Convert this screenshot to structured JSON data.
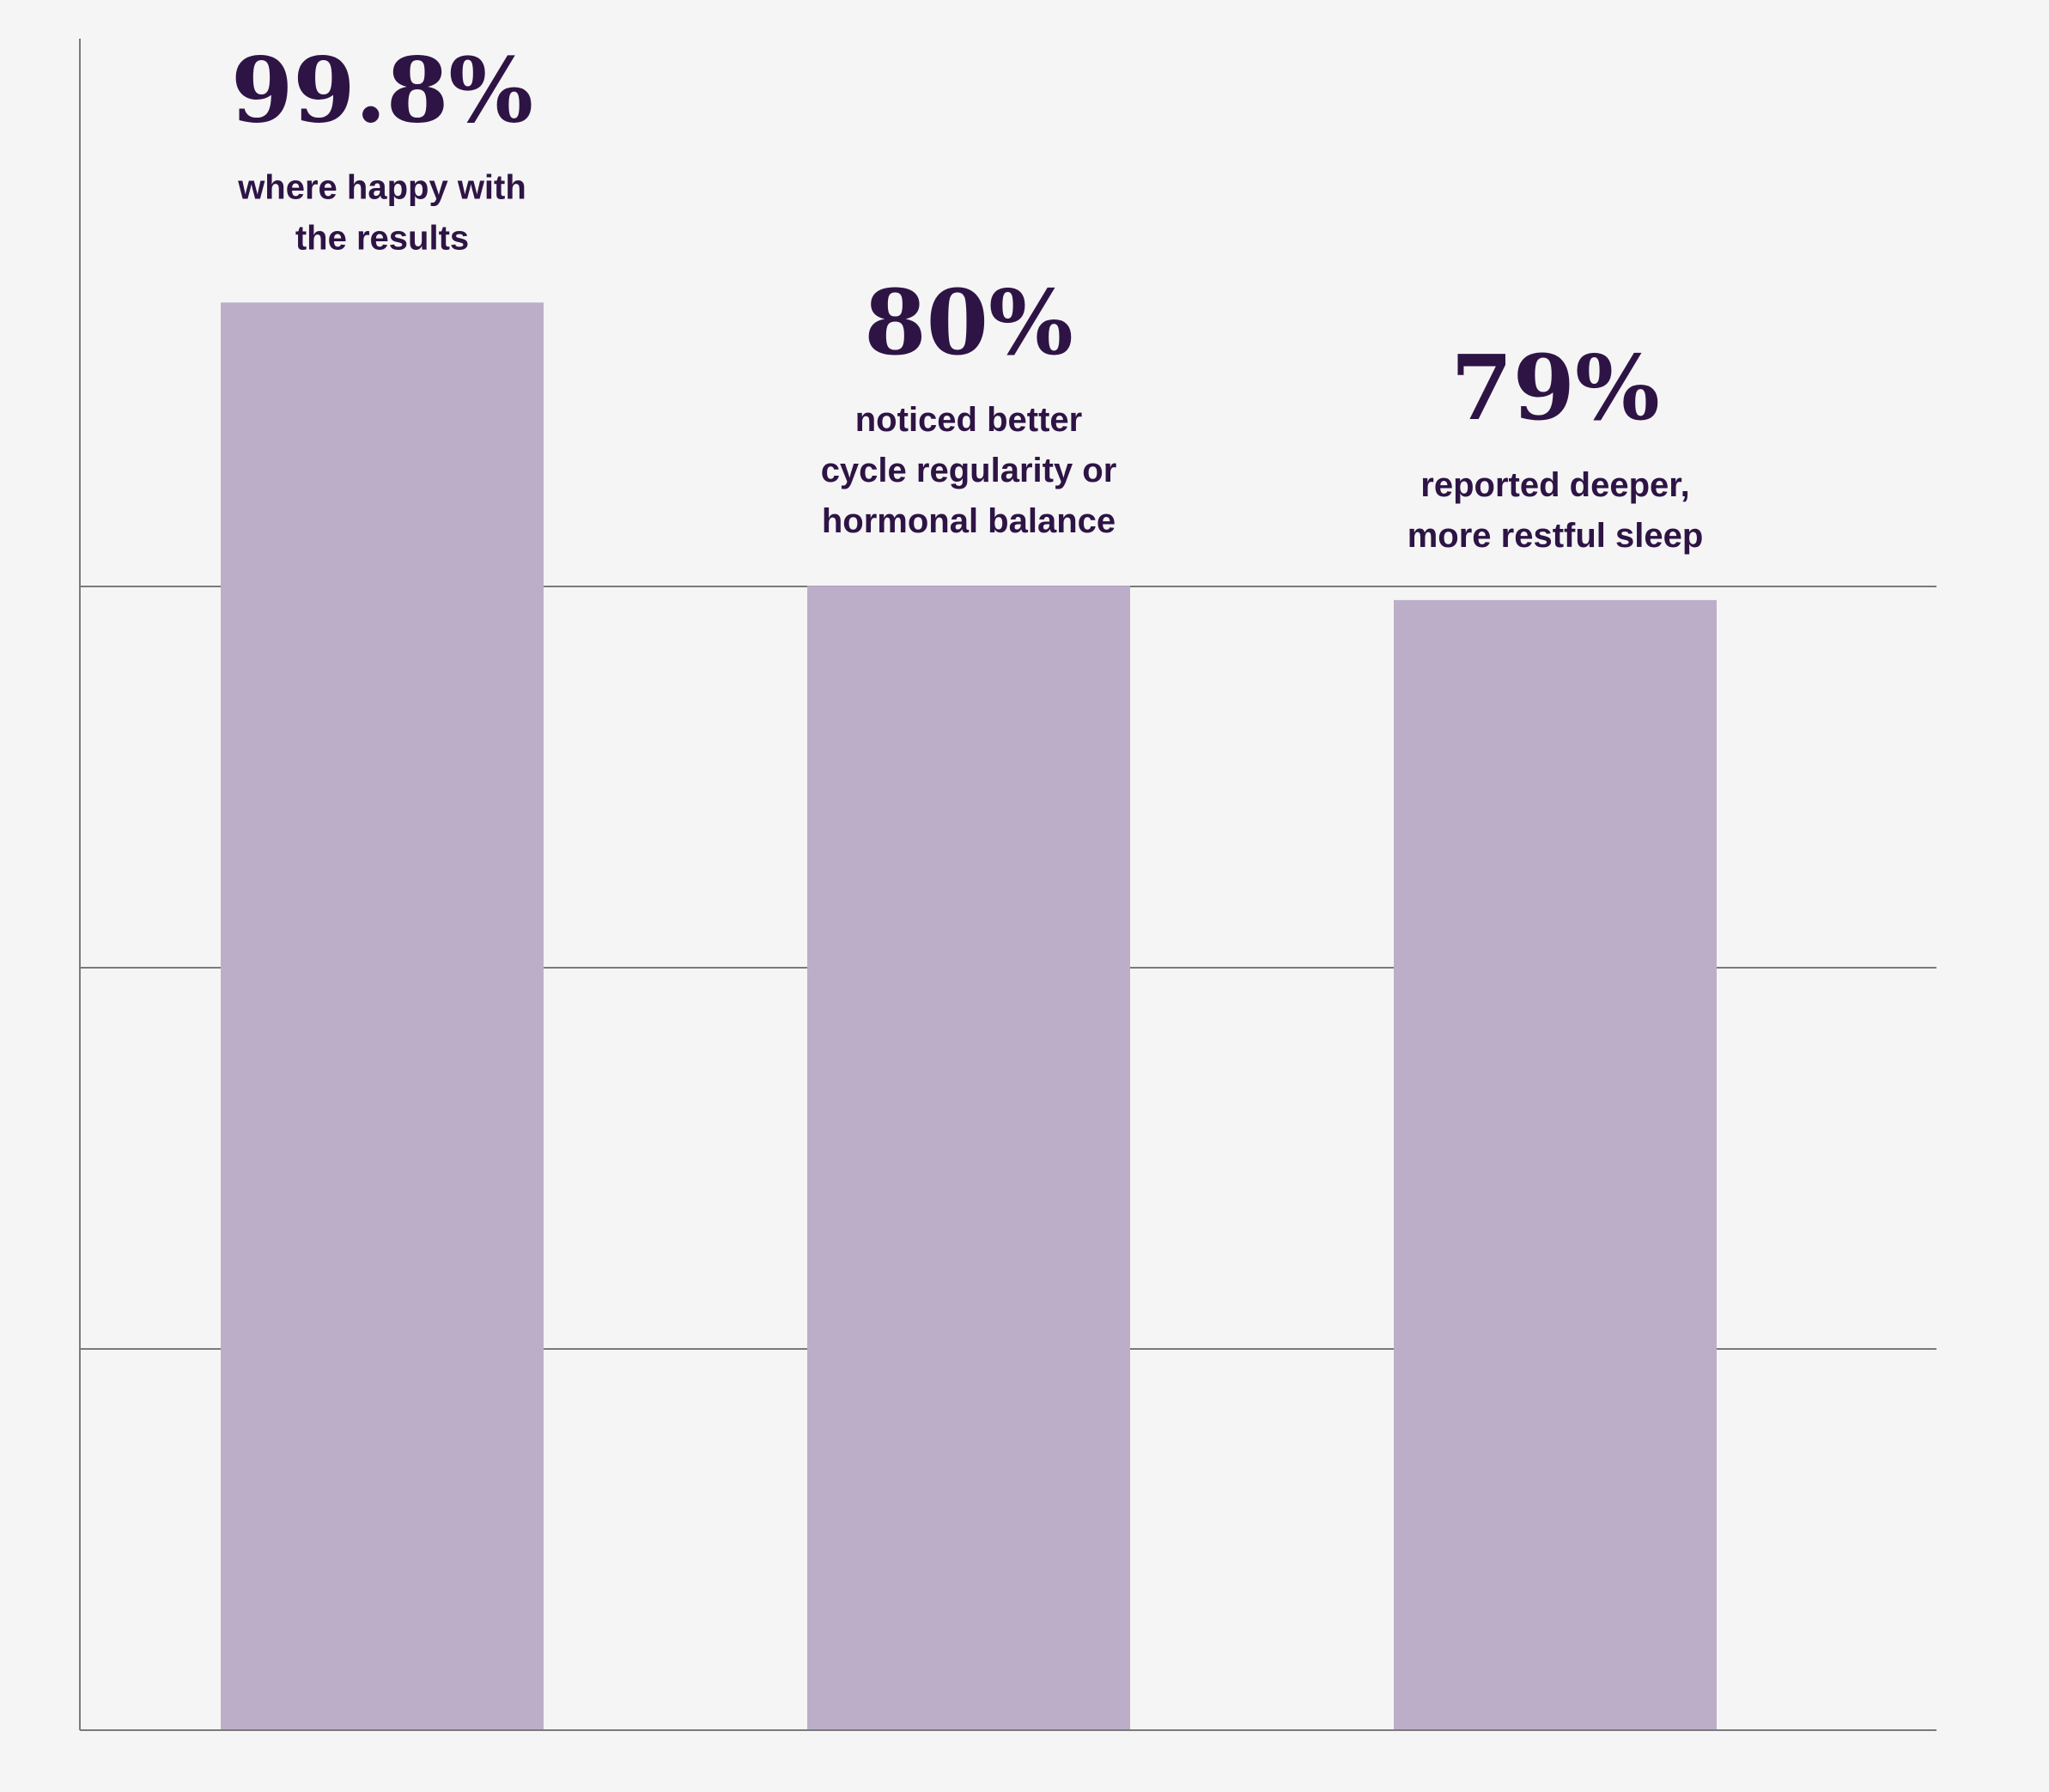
{
  "chart_data": {
    "type": "bar",
    "categories": [
      "where happy with the results",
      "noticed better cycle regularity or hormonal balance",
      "reported deeper, more restful sleep"
    ],
    "values": [
      99.8,
      80,
      79
    ],
    "value_labels": [
      "99.8%",
      "80%",
      "79%"
    ],
    "description_lines": [
      [
        "where happy with",
        "the results"
      ],
      [
        "noticed better",
        "cycle regularity or",
        "hormonal balance"
      ],
      [
        "reported deeper,",
        "more restful sleep"
      ]
    ],
    "gridlines": true,
    "colors": {
      "bar": "#bcaec9",
      "text": "#2e1445",
      "axis": "#7a7a7a",
      "background": "#f5f5f5"
    }
  }
}
